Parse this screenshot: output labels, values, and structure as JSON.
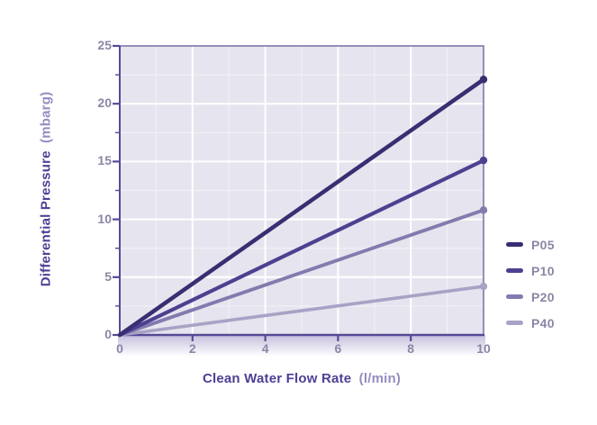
{
  "chart_data": {
    "type": "line",
    "xlabel_bold": "Clean Water Flow Rate",
    "xlabel_unit": "(l/min)",
    "ylabel_bold": "Differential Pressure",
    "ylabel_unit": "(mbarg)",
    "xlim": [
      0,
      10
    ],
    "ylim": [
      0,
      25
    ],
    "x_major_ticks": [
      0,
      2,
      4,
      6,
      8,
      10
    ],
    "y_major_ticks": [
      0,
      5,
      10,
      15,
      20,
      25
    ],
    "x_minor_ticks": [
      1,
      3,
      5,
      7,
      9
    ],
    "y_minor_ticks": [
      2.5,
      7.5,
      12.5,
      17.5,
      22.5
    ],
    "grid": "on",
    "legend_position": "right",
    "series": [
      {
        "name": "P05",
        "color": "#392e71",
        "x": [
          0,
          10
        ],
        "y": [
          0,
          22.1
        ]
      },
      {
        "name": "P10",
        "color": "#4c4190",
        "x": [
          0,
          10
        ],
        "y": [
          0,
          15.1
        ]
      },
      {
        "name": "P20",
        "color": "#837bae",
        "x": [
          0,
          10
        ],
        "y": [
          0,
          10.8
        ]
      },
      {
        "name": "P40",
        "color": "#a9a2c6",
        "x": [
          0,
          10
        ],
        "y": [
          0,
          4.2
        ]
      }
    ]
  },
  "colors": {
    "page_bg": "#ffffff",
    "plot_bg": "#e6e4ee",
    "grid_major": "#ffffff",
    "grid_minor": "#f1f0f7",
    "frame": "#7d77a6",
    "axis": "#564a97",
    "tick_label": "#8b86a5",
    "axis_title": "#4f3f96",
    "axis_title_unit": "#978cc0",
    "legend_label": "#8b86a5",
    "under_axis_fade": "#c3bcdb"
  }
}
